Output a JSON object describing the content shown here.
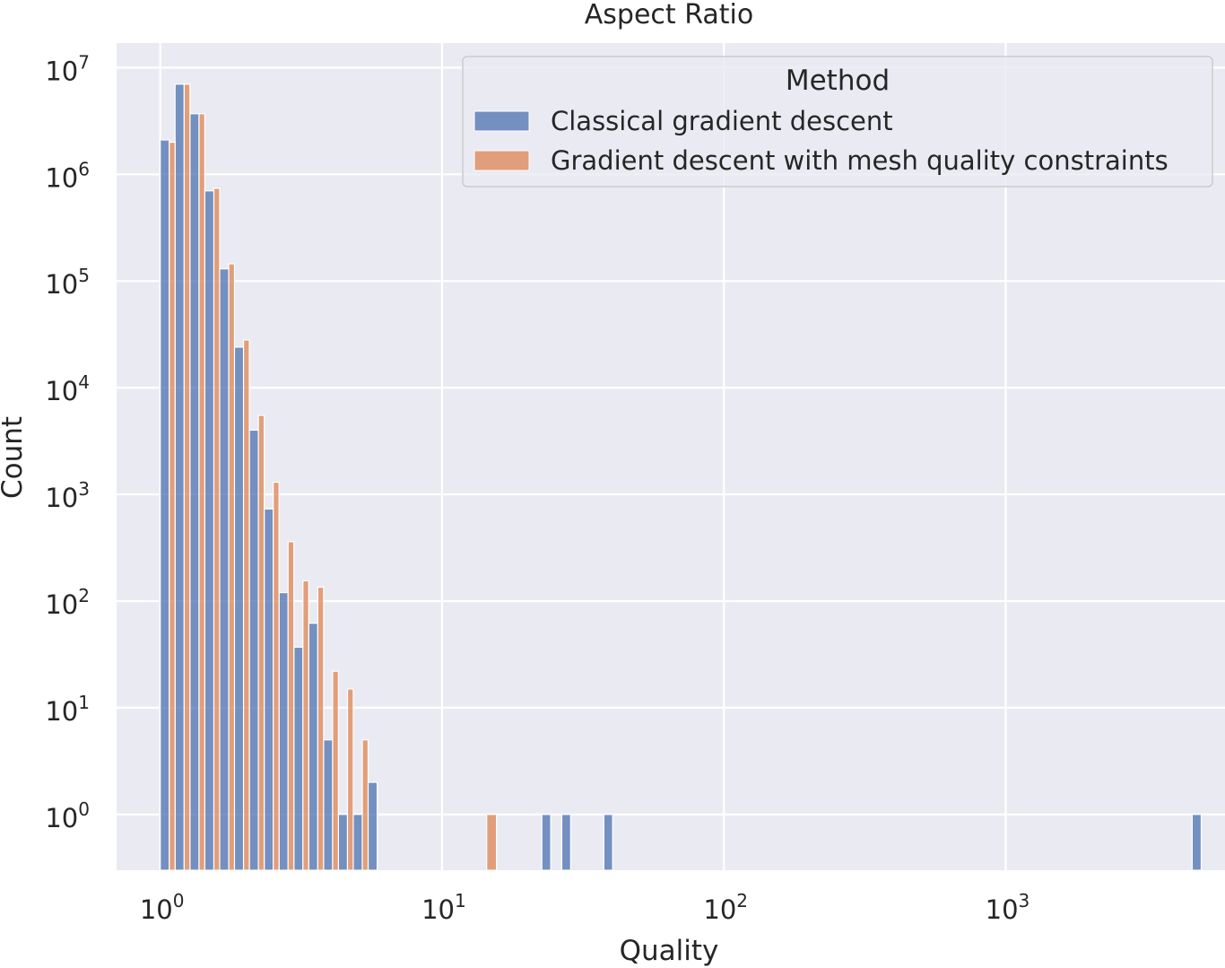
{
  "chart_data": {
    "type": "bar",
    "title": "Aspect Ratio",
    "xlabel": "Quality",
    "ylabel": "Count",
    "xscale": "log",
    "yscale": "log",
    "xlim": [
      0.7,
      6000
    ],
    "ylim": [
      0.3,
      17000000
    ],
    "x_ticks": [
      {
        "base": "10",
        "exp": "0",
        "value": 1
      },
      {
        "base": "10",
        "exp": "1",
        "value": 10
      },
      {
        "base": "10",
        "exp": "2",
        "value": 100
      },
      {
        "base": "10",
        "exp": "3",
        "value": 1000
      }
    ],
    "y_ticks": [
      {
        "base": "10",
        "exp": "0",
        "value": 1
      },
      {
        "base": "10",
        "exp": "1",
        "value": 10
      },
      {
        "base": "10",
        "exp": "2",
        "value": 100
      },
      {
        "base": "10",
        "exp": "3",
        "value": 1000
      },
      {
        "base": "10",
        "exp": "4",
        "value": 10000
      },
      {
        "base": "10",
        "exp": "5",
        "value": 100000
      },
      {
        "base": "10",
        "exp": "6",
        "value": 1000000
      },
      {
        "base": "10",
        "exp": "7",
        "value": 10000000
      }
    ],
    "grid": true,
    "legend": {
      "title": "Method",
      "placement": "top-right"
    },
    "series": [
      {
        "name": "Classical gradient descent",
        "color": "#4c72b0",
        "bins": [
          {
            "x0": 1.0,
            "x1": 1.077,
            "count": 2100000
          },
          {
            "x0": 1.129,
            "x1": 1.216,
            "count": 7000000
          },
          {
            "x0": 1.275,
            "x1": 1.373,
            "count": 3700000
          },
          {
            "x0": 1.439,
            "x1": 1.55,
            "count": 700000
          },
          {
            "x0": 1.625,
            "x1": 1.75,
            "count": 130000
          },
          {
            "x0": 1.834,
            "x1": 1.975,
            "count": 24000
          },
          {
            "x0": 2.071,
            "x1": 2.23,
            "count": 4000
          },
          {
            "x0": 2.338,
            "x1": 2.518,
            "count": 730
          },
          {
            "x0": 2.64,
            "x1": 2.842,
            "count": 120
          },
          {
            "x0": 2.98,
            "x1": 3.209,
            "count": 37
          },
          {
            "x0": 3.364,
            "x1": 3.623,
            "count": 62
          },
          {
            "x0": 3.798,
            "x1": 4.09,
            "count": 5
          },
          {
            "x0": 4.288,
            "x1": 4.618,
            "count": 1
          },
          {
            "x0": 4.841,
            "x1": 5.213,
            "count": 1
          },
          {
            "x0": 5.465,
            "x1": 5.885,
            "count": 2
          },
          {
            "x0": 22.6,
            "x1": 24.3,
            "count": 1
          },
          {
            "x0": 26.6,
            "x1": 28.6,
            "count": 1
          },
          {
            "x0": 37.5,
            "x1": 40.3,
            "count": 1
          },
          {
            "x0": 4590,
            "x1": 4940,
            "count": 1
          }
        ]
      },
      {
        "name": "Gradient descent with mesh quality constraints",
        "color": "#dd8452",
        "bins": [
          {
            "x0": 1.077,
            "x1": 1.129,
            "count": 2000000
          },
          {
            "x0": 1.216,
            "x1": 1.275,
            "count": 7000000
          },
          {
            "x0": 1.373,
            "x1": 1.439,
            "count": 3700000
          },
          {
            "x0": 1.55,
            "x1": 1.625,
            "count": 740000
          },
          {
            "x0": 1.75,
            "x1": 1.834,
            "count": 145000
          },
          {
            "x0": 1.975,
            "x1": 2.071,
            "count": 28000
          },
          {
            "x0": 2.23,
            "x1": 2.338,
            "count": 5500
          },
          {
            "x0": 2.518,
            "x1": 2.64,
            "count": 1300
          },
          {
            "x0": 2.842,
            "x1": 2.98,
            "count": 360
          },
          {
            "x0": 3.209,
            "x1": 3.364,
            "count": 155
          },
          {
            "x0": 3.623,
            "x1": 3.798,
            "count": 135
          },
          {
            "x0": 4.09,
            "x1": 4.288,
            "count": 22
          },
          {
            "x0": 4.618,
            "x1": 4.841,
            "count": 15
          },
          {
            "x0": 5.213,
            "x1": 5.465,
            "count": 5
          },
          {
            "x0": 14.4,
            "x1": 15.6,
            "count": 1
          }
        ]
      }
    ]
  }
}
